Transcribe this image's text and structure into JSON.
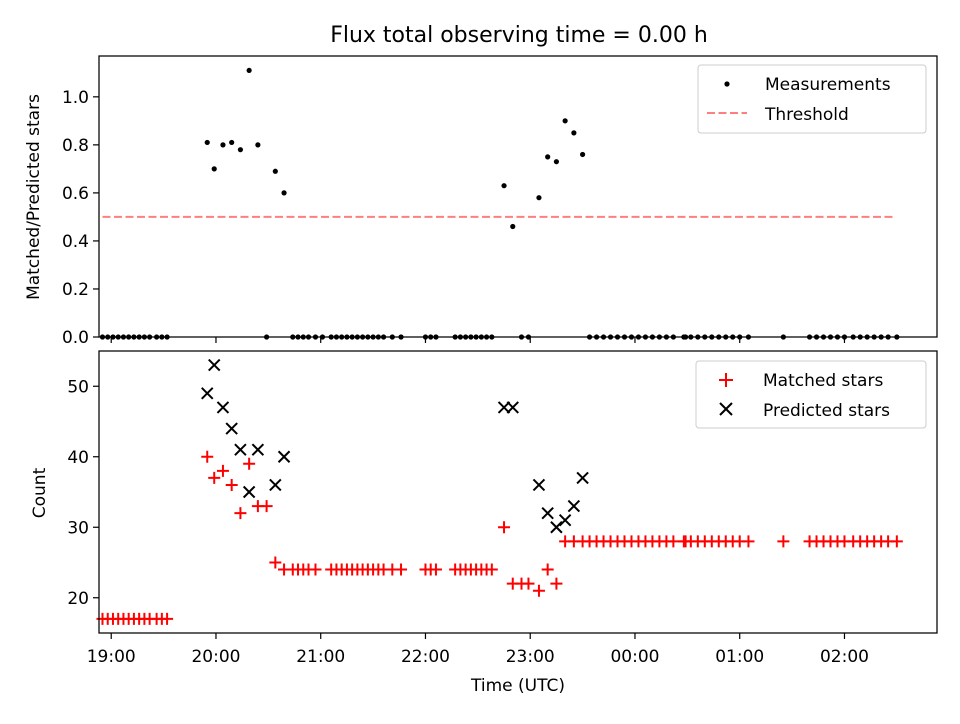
{
  "figure": {
    "title": "Flux total observing time = 0.00 h"
  },
  "chart_data": [
    {
      "type": "scatter",
      "title": "Flux total observing time = 0.00 h",
      "xlabel": "",
      "ylabel": "Matched/Predicted stars",
      "xlim": [
        "18:53",
        "02:53"
      ],
      "ylim": [
        0,
        1.17
      ],
      "yticks": [
        0.0,
        0.2,
        0.4,
        0.6,
        0.8,
        1.0
      ],
      "ytick_labels": [
        "0.0",
        "0.2",
        "0.4",
        "0.6",
        "0.8",
        "1.0"
      ],
      "xticks": [
        "19:00",
        "20:00",
        "21:00",
        "22:00",
        "23:00",
        "00:00",
        "01:00",
        "02:00"
      ],
      "legend_position": "upper right",
      "legend": [
        {
          "label": "Measurements",
          "marker": "dot",
          "color": "#000000"
        },
        {
          "label": "Threshold",
          "marker": "dashed-line",
          "color": "#ff7f7f"
        }
      ],
      "threshold": {
        "value": 0.5,
        "x_start": "18:55",
        "x_end": "02:29"
      },
      "series": [
        {
          "name": "Measurements",
          "color": "#000000",
          "points": [
            {
              "x": "18:55",
              "y": 0.0
            },
            {
              "x": "18:58",
              "y": 0.0
            },
            {
              "x": "19:01",
              "y": 0.0
            },
            {
              "x": "19:04",
              "y": 0.0
            },
            {
              "x": "19:07",
              "y": 0.0
            },
            {
              "x": "19:10",
              "y": 0.0
            },
            {
              "x": "19:13",
              "y": 0.0
            },
            {
              "x": "19:16",
              "y": 0.0
            },
            {
              "x": "19:19",
              "y": 0.0
            },
            {
              "x": "19:22",
              "y": 0.0
            },
            {
              "x": "19:26",
              "y": 0.0
            },
            {
              "x": "19:29",
              "y": 0.0
            },
            {
              "x": "19:32",
              "y": 0.0
            },
            {
              "x": "19:55",
              "y": 0.81
            },
            {
              "x": "19:59",
              "y": 0.7
            },
            {
              "x": "20:04",
              "y": 0.8
            },
            {
              "x": "20:09",
              "y": 0.81
            },
            {
              "x": "20:14",
              "y": 0.78
            },
            {
              "x": "20:19",
              "y": 1.11
            },
            {
              "x": "20:24",
              "y": 0.8
            },
            {
              "x": "20:29",
              "y": 0.0
            },
            {
              "x": "20:34",
              "y": 0.69
            },
            {
              "x": "20:39",
              "y": 0.6
            },
            {
              "x": "20:44",
              "y": 0.0
            },
            {
              "x": "20:47",
              "y": 0.0
            },
            {
              "x": "20:50",
              "y": 0.0
            },
            {
              "x": "20:53",
              "y": 0.0
            },
            {
              "x": "20:57",
              "y": 0.0
            },
            {
              "x": "21:01",
              "y": 0.0
            },
            {
              "x": "21:06",
              "y": 0.0
            },
            {
              "x": "21:09",
              "y": 0.0
            },
            {
              "x": "21:12",
              "y": 0.0
            },
            {
              "x": "21:15",
              "y": 0.0
            },
            {
              "x": "21:18",
              "y": 0.0
            },
            {
              "x": "21:21",
              "y": 0.0
            },
            {
              "x": "21:24",
              "y": 0.0
            },
            {
              "x": "21:27",
              "y": 0.0
            },
            {
              "x": "21:30",
              "y": 0.0
            },
            {
              "x": "21:33",
              "y": 0.0
            },
            {
              "x": "21:36",
              "y": 0.0
            },
            {
              "x": "21:41",
              "y": 0.0
            },
            {
              "x": "21:46",
              "y": 0.0
            },
            {
              "x": "22:00",
              "y": 0.0
            },
            {
              "x": "22:03",
              "y": 0.0
            },
            {
              "x": "22:06",
              "y": 0.0
            },
            {
              "x": "22:17",
              "y": 0.0
            },
            {
              "x": "22:20",
              "y": 0.0
            },
            {
              "x": "22:23",
              "y": 0.0
            },
            {
              "x": "22:26",
              "y": 0.0
            },
            {
              "x": "22:29",
              "y": 0.0
            },
            {
              "x": "22:32",
              "y": 0.0
            },
            {
              "x": "22:35",
              "y": 0.0
            },
            {
              "x": "22:38",
              "y": 0.0
            },
            {
              "x": "22:45",
              "y": 0.63
            },
            {
              "x": "22:50",
              "y": 0.46
            },
            {
              "x": "22:55",
              "y": 0.0
            },
            {
              "x": "22:59",
              "y": 0.0
            },
            {
              "x": "23:05",
              "y": 0.58
            },
            {
              "x": "23:10",
              "y": 0.75
            },
            {
              "x": "23:15",
              "y": 0.73
            },
            {
              "x": "23:20",
              "y": 0.9
            },
            {
              "x": "23:25",
              "y": 0.85
            },
            {
              "x": "23:30",
              "y": 0.76
            },
            {
              "x": "23:34",
              "y": 0.0
            },
            {
              "x": "23:38",
              "y": 0.0
            },
            {
              "x": "23:42",
              "y": 0.0
            },
            {
              "x": "23:46",
              "y": 0.0
            },
            {
              "x": "23:50",
              "y": 0.0
            },
            {
              "x": "23:54",
              "y": 0.0
            },
            {
              "x": "23:58",
              "y": 0.0
            },
            {
              "x": "00:02",
              "y": 0.0
            },
            {
              "x": "00:06",
              "y": 0.0
            },
            {
              "x": "00:10",
              "y": 0.0
            },
            {
              "x": "00:14",
              "y": 0.0
            },
            {
              "x": "00:18",
              "y": 0.0
            },
            {
              "x": "00:22",
              "y": 0.0
            },
            {
              "x": "00:28",
              "y": 0.0
            },
            {
              "x": "00:29",
              "y": 0.0
            },
            {
              "x": "00:32",
              "y": 0.0
            },
            {
              "x": "00:36",
              "y": 0.0
            },
            {
              "x": "00:40",
              "y": 0.0
            },
            {
              "x": "00:44",
              "y": 0.0
            },
            {
              "x": "00:48",
              "y": 0.0
            },
            {
              "x": "00:52",
              "y": 0.0
            },
            {
              "x": "00:56",
              "y": 0.0
            },
            {
              "x": "01:00",
              "y": 0.0
            },
            {
              "x": "01:05",
              "y": 0.0
            },
            {
              "x": "01:25",
              "y": 0.0
            },
            {
              "x": "01:40",
              "y": 0.0
            },
            {
              "x": "01:44",
              "y": 0.0
            },
            {
              "x": "01:48",
              "y": 0.0
            },
            {
              "x": "01:52",
              "y": 0.0
            },
            {
              "x": "01:56",
              "y": 0.0
            },
            {
              "x": "02:00",
              "y": 0.0
            },
            {
              "x": "02:05",
              "y": 0.0
            },
            {
              "x": "02:09",
              "y": 0.0
            },
            {
              "x": "02:13",
              "y": 0.0
            },
            {
              "x": "02:17",
              "y": 0.0
            },
            {
              "x": "02:21",
              "y": 0.0
            },
            {
              "x": "02:25",
              "y": 0.0
            },
            {
              "x": "02:30",
              "y": 0.0
            }
          ]
        }
      ]
    },
    {
      "type": "scatter",
      "title": "",
      "xlabel": "Time (UTC)",
      "ylabel": "Count",
      "xlim": [
        "18:53",
        "02:53"
      ],
      "ylim": [
        15,
        55
      ],
      "yticks": [
        20,
        30,
        40,
        50
      ],
      "ytick_labels": [
        "20",
        "30",
        "40",
        "50"
      ],
      "xticks": [
        "19:00",
        "20:00",
        "21:00",
        "22:00",
        "23:00",
        "00:00",
        "01:00",
        "02:00"
      ],
      "xtick_labels": [
        "19:00",
        "20:00",
        "21:00",
        "22:00",
        "23:00",
        "00:00",
        "01:00",
        "02:00"
      ],
      "legend_position": "upper right",
      "legend": [
        {
          "label": "Matched stars",
          "marker": "plus",
          "color": "#ff0000"
        },
        {
          "label": "Predicted stars",
          "marker": "x",
          "color": "#000000"
        }
      ],
      "series": [
        {
          "name": "Matched stars",
          "marker": "plus",
          "color": "#ff0000",
          "points": [
            {
              "x": "18:55",
              "y": 17
            },
            {
              "x": "18:58",
              "y": 17
            },
            {
              "x": "19:01",
              "y": 17
            },
            {
              "x": "19:04",
              "y": 17
            },
            {
              "x": "19:07",
              "y": 17
            },
            {
              "x": "19:10",
              "y": 17
            },
            {
              "x": "19:13",
              "y": 17
            },
            {
              "x": "19:16",
              "y": 17
            },
            {
              "x": "19:19",
              "y": 17
            },
            {
              "x": "19:22",
              "y": 17
            },
            {
              "x": "19:26",
              "y": 17
            },
            {
              "x": "19:29",
              "y": 17
            },
            {
              "x": "19:32",
              "y": 17
            },
            {
              "x": "19:55",
              "y": 40
            },
            {
              "x": "19:59",
              "y": 37
            },
            {
              "x": "20:04",
              "y": 38
            },
            {
              "x": "20:09",
              "y": 36
            },
            {
              "x": "20:14",
              "y": 32
            },
            {
              "x": "20:19",
              "y": 39
            },
            {
              "x": "20:24",
              "y": 33
            },
            {
              "x": "20:29",
              "y": 33
            },
            {
              "x": "20:34",
              "y": 25
            },
            {
              "x": "20:39",
              "y": 24
            },
            {
              "x": "20:44",
              "y": 24
            },
            {
              "x": "20:47",
              "y": 24
            },
            {
              "x": "20:50",
              "y": 24
            },
            {
              "x": "20:53",
              "y": 24
            },
            {
              "x": "20:57",
              "y": 24
            },
            {
              "x": "21:06",
              "y": 24
            },
            {
              "x": "21:09",
              "y": 24
            },
            {
              "x": "21:12",
              "y": 24
            },
            {
              "x": "21:15",
              "y": 24
            },
            {
              "x": "21:18",
              "y": 24
            },
            {
              "x": "21:21",
              "y": 24
            },
            {
              "x": "21:24",
              "y": 24
            },
            {
              "x": "21:27",
              "y": 24
            },
            {
              "x": "21:30",
              "y": 24
            },
            {
              "x": "21:33",
              "y": 24
            },
            {
              "x": "21:36",
              "y": 24
            },
            {
              "x": "21:41",
              "y": 24
            },
            {
              "x": "21:46",
              "y": 24
            },
            {
              "x": "22:00",
              "y": 24
            },
            {
              "x": "22:03",
              "y": 24
            },
            {
              "x": "22:06",
              "y": 24
            },
            {
              "x": "22:17",
              "y": 24
            },
            {
              "x": "22:20",
              "y": 24
            },
            {
              "x": "22:23",
              "y": 24
            },
            {
              "x": "22:26",
              "y": 24
            },
            {
              "x": "22:29",
              "y": 24
            },
            {
              "x": "22:32",
              "y": 24
            },
            {
              "x": "22:35",
              "y": 24
            },
            {
              "x": "22:38",
              "y": 24
            },
            {
              "x": "22:45",
              "y": 30
            },
            {
              "x": "22:50",
              "y": 22
            },
            {
              "x": "22:55",
              "y": 22
            },
            {
              "x": "22:59",
              "y": 22
            },
            {
              "x": "23:05",
              "y": 21
            },
            {
              "x": "23:10",
              "y": 24
            },
            {
              "x": "23:15",
              "y": 22
            },
            {
              "x": "23:20",
              "y": 28
            },
            {
              "x": "23:25",
              "y": 28
            },
            {
              "x": "23:30",
              "y": 28
            },
            {
              "x": "23:34",
              "y": 28
            },
            {
              "x": "23:38",
              "y": 28
            },
            {
              "x": "23:42",
              "y": 28
            },
            {
              "x": "23:46",
              "y": 28
            },
            {
              "x": "23:50",
              "y": 28
            },
            {
              "x": "23:54",
              "y": 28
            },
            {
              "x": "23:58",
              "y": 28
            },
            {
              "x": "00:02",
              "y": 28
            },
            {
              "x": "00:06",
              "y": 28
            },
            {
              "x": "00:10",
              "y": 28
            },
            {
              "x": "00:14",
              "y": 28
            },
            {
              "x": "00:18",
              "y": 28
            },
            {
              "x": "00:22",
              "y": 28
            },
            {
              "x": "00:28",
              "y": 28
            },
            {
              "x": "00:29",
              "y": 28
            },
            {
              "x": "00:32",
              "y": 28
            },
            {
              "x": "00:36",
              "y": 28
            },
            {
              "x": "00:40",
              "y": 28
            },
            {
              "x": "00:44",
              "y": 28
            },
            {
              "x": "00:48",
              "y": 28
            },
            {
              "x": "00:52",
              "y": 28
            },
            {
              "x": "00:56",
              "y": 28
            },
            {
              "x": "01:00",
              "y": 28
            },
            {
              "x": "01:05",
              "y": 28
            },
            {
              "x": "01:25",
              "y": 28
            },
            {
              "x": "01:40",
              "y": 28
            },
            {
              "x": "01:44",
              "y": 28
            },
            {
              "x": "01:48",
              "y": 28
            },
            {
              "x": "01:52",
              "y": 28
            },
            {
              "x": "01:56",
              "y": 28
            },
            {
              "x": "02:00",
              "y": 28
            },
            {
              "x": "02:05",
              "y": 28
            },
            {
              "x": "02:09",
              "y": 28
            },
            {
              "x": "02:13",
              "y": 28
            },
            {
              "x": "02:17",
              "y": 28
            },
            {
              "x": "02:21",
              "y": 28
            },
            {
              "x": "02:25",
              "y": 28
            },
            {
              "x": "02:30",
              "y": 28
            }
          ]
        },
        {
          "name": "Predicted stars",
          "marker": "x",
          "color": "#000000",
          "points": [
            {
              "x": "19:55",
              "y": 49
            },
            {
              "x": "19:59",
              "y": 53
            },
            {
              "x": "20:04",
              "y": 47
            },
            {
              "x": "20:09",
              "y": 44
            },
            {
              "x": "20:14",
              "y": 41
            },
            {
              "x": "20:19",
              "y": 35
            },
            {
              "x": "20:24",
              "y": 41
            },
            {
              "x": "20:34",
              "y": 36
            },
            {
              "x": "20:39",
              "y": 40
            },
            {
              "x": "22:45",
              "y": 47
            },
            {
              "x": "22:50",
              "y": 47
            },
            {
              "x": "23:05",
              "y": 36
            },
            {
              "x": "23:10",
              "y": 32
            },
            {
              "x": "23:15",
              "y": 30
            },
            {
              "x": "23:20",
              "y": 31
            },
            {
              "x": "23:25",
              "y": 33
            },
            {
              "x": "23:30",
              "y": 37
            }
          ]
        }
      ]
    }
  ]
}
